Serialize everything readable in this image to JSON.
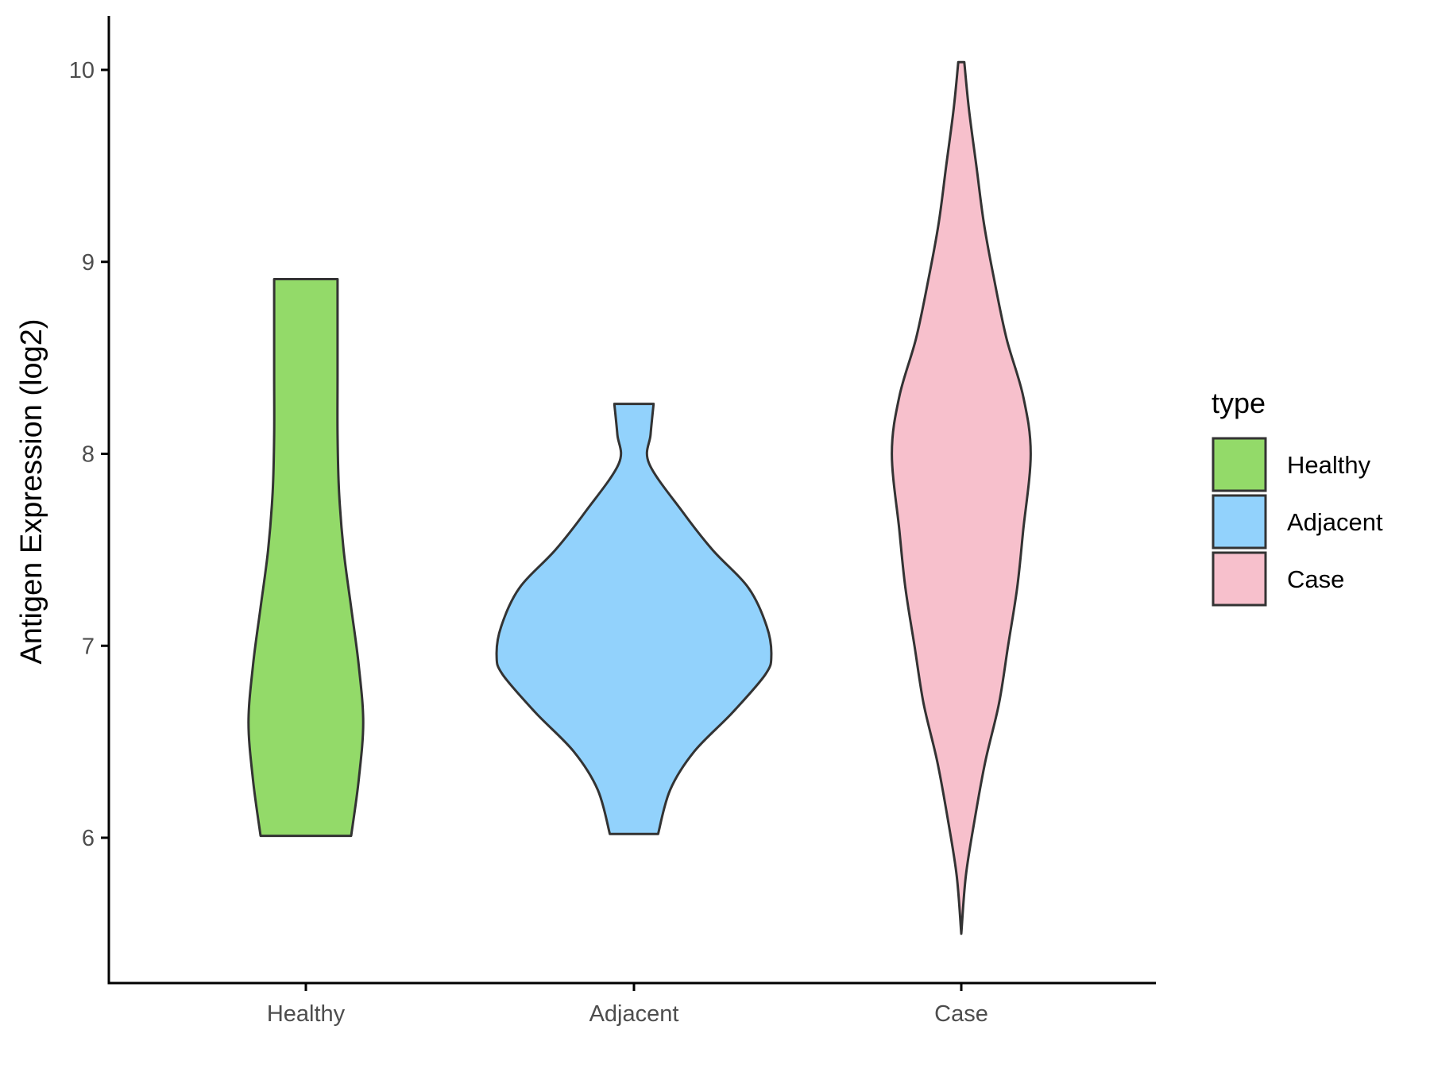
{
  "chart_data": {
    "type": "violin",
    "ylabel": "Antigen Expression (log2)",
    "xlabel": "",
    "ylim": [
      5.35,
      10.3
    ],
    "yticks": [
      "6",
      "7",
      "8",
      "9",
      "10"
    ],
    "categories": [
      "Healthy",
      "Adjacent",
      "Case"
    ],
    "legend": {
      "title": "type",
      "position": "right",
      "entries": [
        "Healthy",
        "Adjacent",
        "Case"
      ]
    },
    "grid": false,
    "series": [
      {
        "name": "Healthy",
        "color": "#93DA69",
        "min": 6.01,
        "max": 8.91,
        "density_profile": [
          [
            6.01,
            0.3
          ],
          [
            6.3,
            0.35
          ],
          [
            6.6,
            0.38
          ],
          [
            6.9,
            0.35
          ],
          [
            7.2,
            0.3
          ],
          [
            7.5,
            0.25
          ],
          [
            7.8,
            0.22
          ],
          [
            8.1,
            0.21
          ],
          [
            8.4,
            0.21
          ],
          [
            8.7,
            0.21
          ],
          [
            8.91,
            0.21
          ]
        ]
      },
      {
        "name": "Adjacent",
        "color": "#92D2FC",
        "min": 6.02,
        "max": 8.26,
        "density_profile": [
          [
            6.02,
            0.16
          ],
          [
            6.25,
            0.24
          ],
          [
            6.45,
            0.4
          ],
          [
            6.65,
            0.65
          ],
          [
            6.85,
            0.87
          ],
          [
            6.95,
            0.91
          ],
          [
            7.1,
            0.88
          ],
          [
            7.3,
            0.76
          ],
          [
            7.5,
            0.52
          ],
          [
            7.7,
            0.32
          ],
          [
            7.95,
            0.1
          ],
          [
            8.1,
            0.11
          ],
          [
            8.26,
            0.13
          ]
        ]
      },
      {
        "name": "Case",
        "color": "#F7C0CC",
        "min": 5.5,
        "max": 10.04,
        "density_profile": [
          [
            5.5,
            0.0
          ],
          [
            5.8,
            0.03
          ],
          [
            6.1,
            0.09
          ],
          [
            6.4,
            0.16
          ],
          [
            6.7,
            0.25
          ],
          [
            7.0,
            0.31
          ],
          [
            7.3,
            0.37
          ],
          [
            7.6,
            0.41
          ],
          [
            8.0,
            0.46
          ],
          [
            8.3,
            0.41
          ],
          [
            8.6,
            0.3
          ],
          [
            8.9,
            0.22
          ],
          [
            9.2,
            0.15
          ],
          [
            9.5,
            0.1
          ],
          [
            9.8,
            0.05
          ],
          [
            10.04,
            0.02
          ]
        ]
      }
    ]
  }
}
